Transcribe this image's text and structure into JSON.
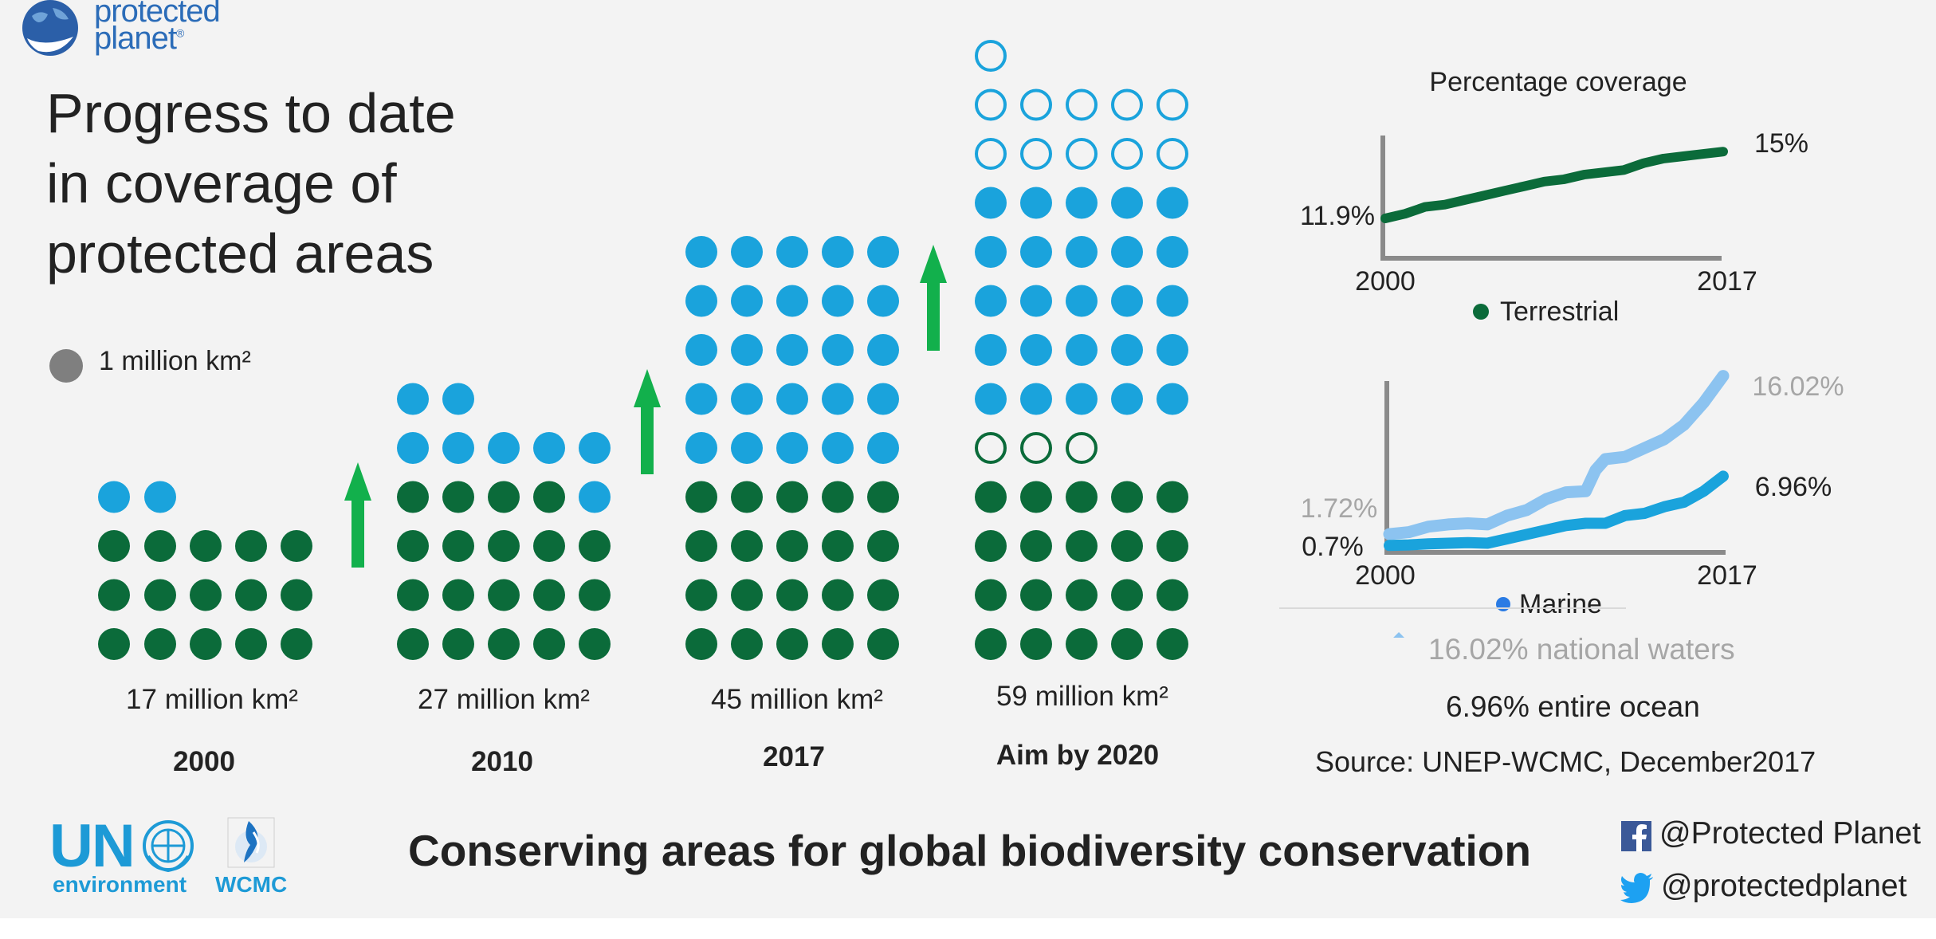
{
  "logo": {
    "line1": "protected",
    "line2": "planet",
    "trademark": "®"
  },
  "title": {
    "line1": "Progress to date",
    "line2": "in coverage of",
    "line3": "protected areas"
  },
  "legend": {
    "label": "1 million km²"
  },
  "colors": {
    "terrestrial": "#0b6b3a",
    "marine": "#1aa3dc",
    "marine_light": "#8cc3f0",
    "arrow": "#12b04c",
    "legend_dot": "#7f7f7f",
    "brand_blue": "#1d9ad6"
  },
  "chart_data": [
    {
      "type": "pictogram",
      "unit": "1 million km²",
      "columns": [
        {
          "year": "2000",
          "area_label": "17 million km²",
          "terrestrial": 15,
          "marine": 2,
          "target_terrestrial": 0,
          "target_marine": 0
        },
        {
          "year": "2010",
          "area_label": "27 million km²",
          "terrestrial": 19,
          "marine": 8,
          "target_terrestrial": 0,
          "target_marine": 0
        },
        {
          "year": "2017",
          "area_label": "45 million km²",
          "terrestrial": 20,
          "marine": 25,
          "target_terrestrial": 0,
          "target_marine": 0
        },
        {
          "year": "Aim by 2020",
          "area_label": "59 million km²",
          "terrestrial": 20,
          "marine": 25,
          "target_terrestrial": 3,
          "target_marine": 11
        }
      ]
    },
    {
      "type": "line",
      "title": "Percentage coverage",
      "legend": "Terrestrial",
      "x_start": "2000",
      "x_end": "2017",
      "xlim": [
        2000,
        2017
      ],
      "ylim": [
        11.0,
        15.5
      ],
      "start_label": "11.9%",
      "end_label": "15%",
      "series": [
        {
          "name": "Terrestrial",
          "x": [
            2000,
            2001,
            2002,
            2003,
            2004,
            2005,
            2006,
            2007,
            2008,
            2009,
            2010,
            2011,
            2012,
            2013,
            2014,
            2015,
            2016,
            2017
          ],
          "values": [
            11.9,
            12.1,
            12.4,
            12.5,
            12.7,
            12.9,
            13.1,
            13.3,
            13.5,
            13.6,
            13.8,
            13.9,
            14.0,
            14.3,
            14.5,
            14.6,
            14.7,
            14.8
          ]
        }
      ]
    },
    {
      "type": "line",
      "legend": "Marine",
      "x_start": "2000",
      "x_end": "2017",
      "xlim": [
        2000,
        2017
      ],
      "ylim": [
        0,
        17
      ],
      "series": [
        {
          "name": "16.02% national waters",
          "start_label": "1.72%",
          "end_label": "16.02%",
          "x": [
            2000,
            2001,
            2002,
            2003,
            2004,
            2005,
            2006,
            2007,
            2008,
            2009,
            2010,
            2010.5,
            2011,
            2012,
            2013,
            2014,
            2015,
            2016,
            2017
          ],
          "values": [
            1.72,
            1.9,
            2.4,
            2.6,
            2.7,
            2.6,
            3.4,
            3.9,
            4.9,
            5.5,
            5.6,
            7.5,
            8.5,
            8.7,
            9.5,
            10.3,
            11.6,
            13.6,
            16.02
          ]
        },
        {
          "name": "6.96% entire ocean",
          "start_label": "0.7%",
          "end_label": "6.96%",
          "x": [
            2000,
            2001,
            2002,
            2003,
            2004,
            2005,
            2006,
            2007,
            2008,
            2009,
            2010,
            2011,
            2012,
            2013,
            2014,
            2015,
            2016,
            2017
          ],
          "values": [
            0.7,
            0.75,
            0.85,
            0.9,
            0.95,
            0.9,
            1.3,
            1.7,
            2.1,
            2.5,
            2.7,
            2.7,
            3.4,
            3.6,
            4.2,
            4.6,
            5.6,
            6.96
          ]
        }
      ]
    }
  ],
  "marine_legend": {
    "national": "16.02% national waters",
    "ocean": "6.96% entire ocean"
  },
  "source": "Source: UNEP-WCMC, December2017",
  "tagline": "Conserving areas for global biodiversity conservation",
  "footer_logos": {
    "un": "UN",
    "environment": "environment",
    "wcmc": "WCMC"
  },
  "social": {
    "facebook": "@Protected Planet",
    "twitter": "@protectedplanet"
  },
  "icons": {
    "facebook": "facebook-icon",
    "twitter": "twitter-icon",
    "globe": "globe-icon"
  }
}
